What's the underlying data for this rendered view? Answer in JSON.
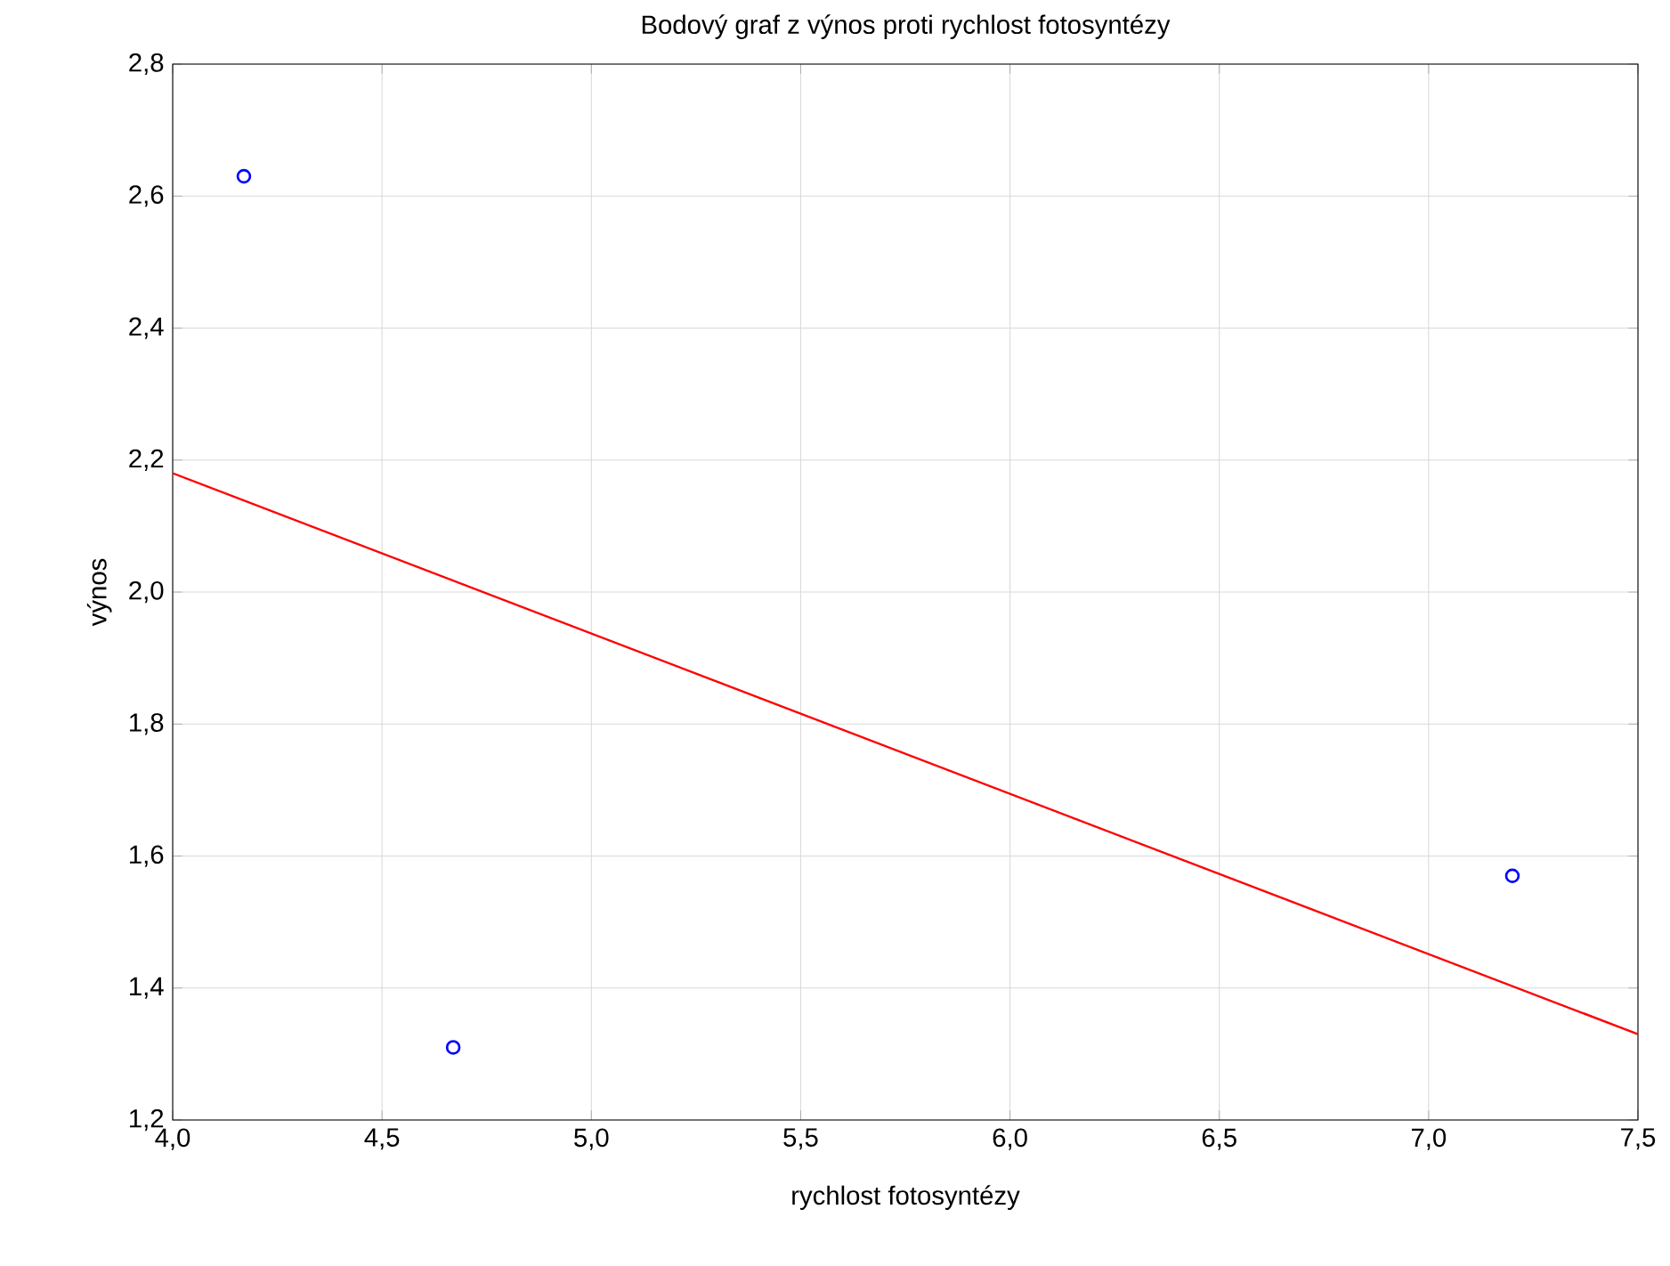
{
  "chart_data": {
    "type": "scatter",
    "title": "Bodový graf z výnos proti rychlost fotosyntézy",
    "xlabel": "rychlost fotosyntézy",
    "ylabel": "výnos",
    "series": [
      {
        "color": "#0000ff",
        "x": [
          4.17,
          4.67,
          7.2
        ],
        "values": [
          2.63,
          1.31,
          1.57
        ],
        "marker": "circle"
      },
      {
        "type": "line",
        "color": "#ff0000",
        "x": [
          4.0,
          7.5
        ],
        "values": [
          2.18,
          1.33
        ],
        "marker": "none",
        "line_style": "solid"
      }
    ],
    "xlim": [
      4.0,
      7.5
    ],
    "ylim": [
      1.2,
      2.8
    ],
    "xticks": [
      {
        "value": 4.0,
        "label": "4,0"
      },
      {
        "value": 4.5,
        "label": "4,5"
      },
      {
        "value": 5.0,
        "label": "5,0"
      },
      {
        "value": 5.5,
        "label": "5,5"
      },
      {
        "value": 6.0,
        "label": "6,0"
      },
      {
        "value": 6.5,
        "label": "6,5"
      },
      {
        "value": 7.0,
        "label": "7,0"
      },
      {
        "value": 7.5,
        "label": "7,5"
      }
    ],
    "yticks": [
      {
        "value": 1.2,
        "label": "1,2"
      },
      {
        "value": 1.4,
        "label": "1,4"
      },
      {
        "value": 1.6,
        "label": "1,6"
      },
      {
        "value": 1.8,
        "label": "1,8"
      },
      {
        "value": 2.0,
        "label": "2,0"
      },
      {
        "value": 2.2,
        "label": "2,2"
      },
      {
        "value": 2.4,
        "label": "2,4"
      },
      {
        "value": 2.6,
        "label": "2,6"
      },
      {
        "value": 2.8,
        "label": "2,8"
      }
    ],
    "grid": true
  }
}
